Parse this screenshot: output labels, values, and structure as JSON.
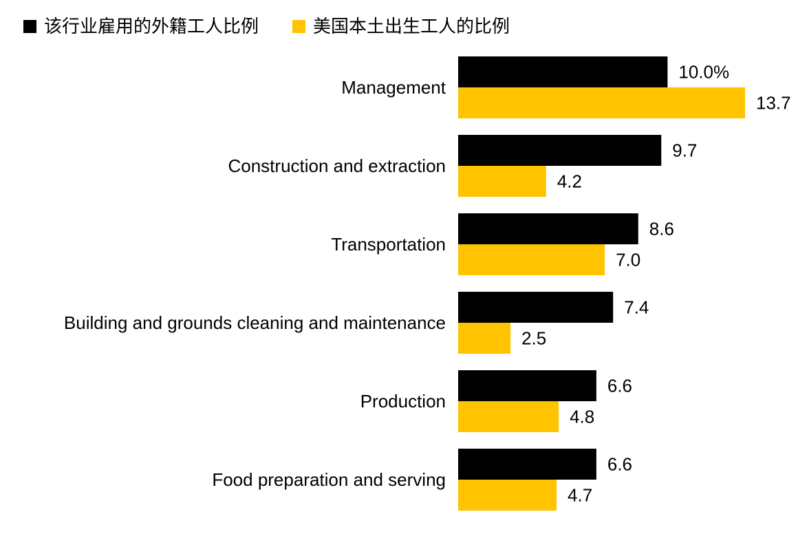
{
  "colors": {
    "foreign": "#000000",
    "native": "#FFC300",
    "text": "#000000",
    "background": "#ffffff"
  },
  "legend": {
    "items": [
      {
        "label": "该行业雇用的外籍工人比例",
        "color": "#000000"
      },
      {
        "label": "美国本土出生工人的比例",
        "color": "#FFC300"
      }
    ],
    "placement": "top-left"
  },
  "chart_data": {
    "type": "bar",
    "orientation": "horizontal",
    "categories": [
      "Management",
      "Construction and extraction",
      "Transportation",
      "Building and grounds cleaning and maintenance",
      "Production",
      "Food preparation and serving"
    ],
    "series": [
      {
        "name": "该行业雇用的外籍工人比例",
        "color": "#000000",
        "values": [
          10.0,
          9.7,
          8.6,
          7.4,
          6.6,
          6.6
        ],
        "labels": [
          "10.0%",
          "9.7",
          "8.6",
          "7.4",
          "6.6",
          "6.6"
        ]
      },
      {
        "name": "美国本土出生工人的比例",
        "color": "#FFC300",
        "values": [
          13.7,
          4.2,
          7.0,
          2.5,
          4.8,
          4.7
        ],
        "labels": [
          "13.7",
          "4.2",
          "7.0",
          "2.5",
          "4.8",
          "4.7"
        ]
      }
    ],
    "unit": "%",
    "xlim": [
      0,
      13.7
    ],
    "grid": false,
    "axes_visible": false,
    "title": "",
    "xlabel": "",
    "ylabel": ""
  }
}
